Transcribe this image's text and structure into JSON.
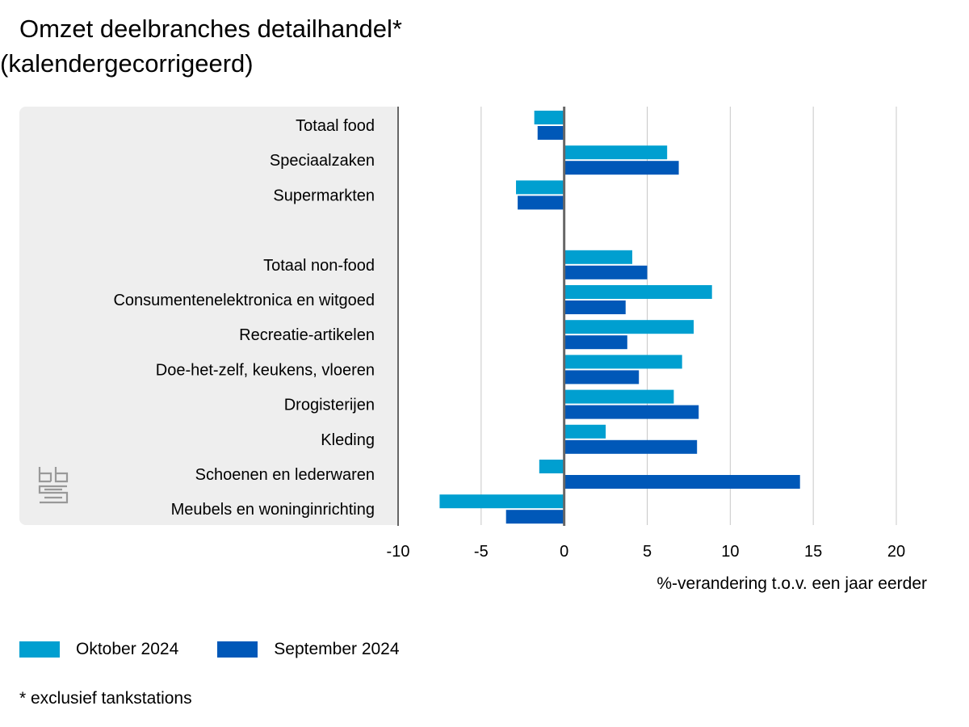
{
  "title": {
    "line1": "Omzet deelbranches detailhandel*",
    "line2": "(kalendergecorrigeerd)"
  },
  "legend": {
    "series1": "Oktober 2024",
    "series2": "September 2024"
  },
  "footnote": "* exclusief tankstations",
  "colors": {
    "oktober": "#009FD0",
    "september": "#0058B8",
    "panel": "#EEEEEE",
    "grid": "#C8C8C8",
    "axis": "#666666"
  },
  "chart_data": {
    "type": "bar",
    "orientation": "horizontal",
    "title": "Omzet deelbranches detailhandel* (kalendergecorrigeerd)",
    "xlabel": "%-verandering t.o.v. een jaar eerder",
    "ylabel": "",
    "xlim": [
      -10,
      20
    ],
    "xticks": [
      "-10",
      "-5",
      "0",
      "5",
      "10",
      "15",
      "20"
    ],
    "xtick_values": [
      -10,
      -5,
      0,
      5,
      10,
      15,
      20
    ],
    "categories": [
      "Totaal food",
      "Speciaalzaken",
      "Supermarkten",
      "",
      "Totaal non-food",
      "Consumentenelektronica en witgoed",
      "Recreatie-artikelen",
      "Doe-het-zelf, keukens, vloeren",
      "Drogisterijen",
      "Kleding",
      "Schoenen en lederwaren",
      "Meubels en woninginrichting"
    ],
    "series": [
      {
        "name": "Oktober 2024",
        "values": [
          -1.8,
          6.2,
          -2.9,
          null,
          4.1,
          8.9,
          7.8,
          7.1,
          6.6,
          2.5,
          -1.5,
          -7.5
        ]
      },
      {
        "name": "September 2024",
        "values": [
          -1.6,
          6.9,
          -2.8,
          null,
          5.0,
          3.7,
          3.8,
          4.5,
          8.1,
          8.0,
          14.2,
          -3.5
        ]
      }
    ],
    "grid": true,
    "legend_position": "bottom-left"
  }
}
